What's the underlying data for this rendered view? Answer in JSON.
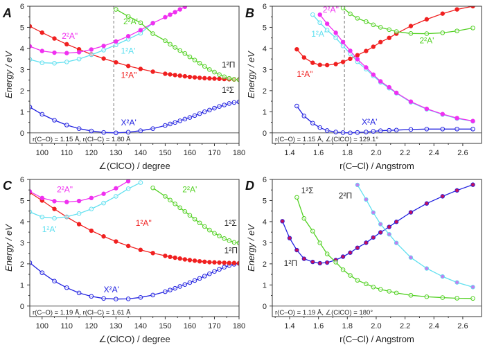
{
  "chart_data": [
    {
      "type": "line",
      "panel": "A",
      "xlabel": "∠(ClCO) / degree",
      "ylabel": "Energy / eV",
      "xlim": [
        95,
        180
      ],
      "ylim": [
        -0.5,
        6
      ],
      "xticks": [
        100,
        110,
        120,
        130,
        140,
        150,
        160,
        170,
        180
      ],
      "yticks": [
        0,
        1,
        2,
        3,
        4,
        5,
        6
      ],
      "note": "r(C–O) = 1.15 Å, r(Cl–C) = 1.80 Å",
      "dashed_x": 129.1,
      "extra_labels": [
        {
          "text": "1²Π",
          "color": "#222222"
        },
        {
          "text": "1²Σ",
          "color": "#222222"
        }
      ],
      "series": [
        {
          "name": "X²A'",
          "color": "#2020e0",
          "filled": false,
          "x": [
            95,
            100,
            105,
            110,
            115,
            120,
            125,
            130,
            135,
            140,
            145,
            150,
            152,
            154,
            156,
            158,
            160,
            162,
            164,
            166,
            168,
            170,
            172,
            174,
            176,
            178,
            180
          ],
          "y": [
            1.22,
            0.88,
            0.6,
            0.37,
            0.2,
            0.09,
            0.02,
            0,
            0.03,
            0.1,
            0.2,
            0.35,
            0.42,
            0.49,
            0.57,
            0.65,
            0.73,
            0.82,
            0.91,
            1.0,
            1.08,
            1.17,
            1.25,
            1.32,
            1.39,
            1.44,
            1.47
          ]
        },
        {
          "name": "1²A\"",
          "color": "#f02020",
          "filled": true,
          "x": [
            95,
            100,
            105,
            110,
            115,
            120,
            125,
            130,
            135,
            140,
            145,
            150,
            152,
            154,
            156,
            158,
            160,
            162,
            164,
            166,
            168,
            170,
            172,
            174,
            176,
            178,
            180
          ],
          "y": [
            5.05,
            4.75,
            4.47,
            4.2,
            3.96,
            3.72,
            3.52,
            3.34,
            3.17,
            3.03,
            2.9,
            2.8,
            2.77,
            2.74,
            2.71,
            2.68,
            2.65,
            2.63,
            2.61,
            2.59,
            2.58,
            2.57,
            2.56,
            2.55,
            2.54,
            2.53,
            2.53
          ]
        },
        {
          "name": "1²A'",
          "color": "#60e0f0",
          "filled": false,
          "x": [
            95,
            100,
            105,
            110,
            115,
            120,
            125,
            130,
            135,
            140,
            145
          ],
          "y": [
            3.48,
            3.32,
            3.3,
            3.36,
            3.5,
            3.7,
            3.92,
            4.17,
            4.44,
            4.72,
            5.2
          ]
        },
        {
          "name": "2²A\"",
          "color": "#f030f0",
          "filled": true,
          "x": [
            95,
            100,
            105,
            110,
            115,
            120,
            125,
            130,
            135,
            140,
            145,
            150,
            152,
            154,
            156,
            158
          ],
          "y": [
            4.1,
            3.88,
            3.8,
            3.78,
            3.82,
            3.95,
            4.12,
            4.33,
            4.58,
            4.87,
            5.2,
            5.48,
            5.6,
            5.72,
            5.85,
            5.97
          ]
        },
        {
          "name": "2²A'",
          "color": "#50d020",
          "filled": false,
          "x": [
            130,
            135,
            140,
            145,
            150,
            152,
            154,
            156,
            158,
            160,
            162,
            164,
            166,
            168,
            170,
            172,
            174,
            176,
            178,
            180
          ],
          "y": [
            5.85,
            5.52,
            5.22,
            4.7,
            4.37,
            4.2,
            4.05,
            3.9,
            3.76,
            3.6,
            3.45,
            3.3,
            3.15,
            3.0,
            2.88,
            2.76,
            2.66,
            2.58,
            2.54,
            2.52
          ]
        }
      ]
    },
    {
      "type": "line",
      "panel": "B",
      "xlabel": "r(C–Cl) / Angstrom",
      "ylabel": "Energy / eV",
      "xlim": [
        1.28,
        2.73
      ],
      "ylim": [
        -0.5,
        6
      ],
      "xticks": [
        1.4,
        1.6,
        1.8,
        2.0,
        2.2,
        2.4,
        2.6
      ],
      "yticks": [
        0,
        1,
        2,
        3,
        4,
        5,
        6
      ],
      "note": "r(C–O) = 1.15 Å, ∠(ClCO) = 129.1°",
      "dashed_x": 1.78,
      "extra_labels": [],
      "series": [
        {
          "name": "X²A'",
          "color": "#2020e0",
          "filled": false,
          "x": [
            1.45,
            1.5,
            1.56,
            1.61,
            1.66,
            1.72,
            1.77,
            1.82,
            1.87,
            1.93,
            1.98,
            2.03,
            2.09,
            2.14,
            2.24,
            2.35,
            2.46,
            2.56,
            2.67
          ],
          "y": [
            1.27,
            0.8,
            0.46,
            0.25,
            0.11,
            0.04,
            0.01,
            0,
            0.02,
            0.04,
            0.07,
            0.1,
            0.12,
            0.13,
            0.16,
            0.18,
            0.18,
            0.18,
            0.18
          ]
        },
        {
          "name": "1²A\"",
          "color": "#f02020",
          "filled": true,
          "x": [
            1.45,
            1.5,
            1.56,
            1.61,
            1.66,
            1.72,
            1.77,
            1.82,
            1.87,
            1.93,
            1.98,
            2.03,
            2.09,
            2.14,
            2.24,
            2.35,
            2.46,
            2.56,
            2.67
          ],
          "y": [
            3.96,
            3.57,
            3.32,
            3.22,
            3.21,
            3.26,
            3.36,
            3.51,
            3.68,
            3.88,
            4.08,
            4.3,
            4.5,
            4.7,
            5.06,
            5.38,
            5.65,
            5.85,
            6.0
          ]
        },
        {
          "name": "1²A'",
          "color": "#60e0f0",
          "filled": false,
          "x": [
            1.56,
            1.61,
            1.66,
            1.72,
            1.77,
            1.82,
            1.87,
            1.93,
            1.98,
            2.03,
            2.09,
            2.14,
            2.24,
            2.35,
            2.46,
            2.56,
            2.67
          ],
          "y": [
            5.6,
            5.22,
            4.87,
            4.5,
            4.12,
            3.75,
            3.37,
            3.02,
            2.7,
            2.4,
            2.12,
            1.88,
            1.45,
            1.12,
            0.87,
            0.68,
            0.55
          ]
        },
        {
          "name": "2²A\"",
          "color": "#f030f0",
          "filled": true,
          "x": [
            1.61,
            1.66,
            1.72,
            1.77,
            1.82,
            1.87,
            1.93,
            1.98,
            2.03,
            2.09,
            2.14,
            2.24,
            2.35,
            2.46,
            2.56,
            2.67
          ],
          "y": [
            5.6,
            5.17,
            4.74,
            4.3,
            3.89,
            3.49,
            3.1,
            2.76,
            2.44,
            2.16,
            1.9,
            1.48,
            1.14,
            0.89,
            0.7,
            0.56
          ]
        },
        {
          "name": "2²A'",
          "color": "#50d020",
          "filled": false,
          "x": [
            1.77,
            1.82,
            1.87,
            1.93,
            1.98,
            2.03,
            2.09,
            2.14,
            2.24,
            2.35,
            2.46,
            2.56,
            2.67
          ],
          "y": [
            5.92,
            5.64,
            5.43,
            5.27,
            5.12,
            5.0,
            4.89,
            4.8,
            4.71,
            4.7,
            4.74,
            4.83,
            4.97
          ]
        }
      ]
    },
    {
      "type": "line",
      "panel": "C",
      "xlabel": "∠(ClCO) / degree",
      "ylabel": "Energy / eV",
      "xlim": [
        95,
        180
      ],
      "ylim": [
        -0.5,
        6
      ],
      "xticks": [
        100,
        110,
        120,
        130,
        140,
        150,
        160,
        170,
        180
      ],
      "yticks": [
        0,
        1,
        2,
        3,
        4,
        5,
        6
      ],
      "note": "r(C–O) = 1.19 Å, r(Cl–C) = 1.61 Å",
      "extra_labels": [
        {
          "text": "1²Σ",
          "color": "#222222"
        },
        {
          "text": "1²Π",
          "color": "#222222"
        }
      ],
      "series": [
        {
          "name": "X²A'",
          "color": "#2020e0",
          "filled": false,
          "x": [
            95,
            100,
            105,
            110,
            115,
            120,
            125,
            130,
            135,
            140,
            145,
            150,
            152,
            154,
            156,
            158,
            160,
            162,
            164,
            166,
            168,
            170,
            172,
            174,
            176,
            178,
            180
          ],
          "y": [
            2.05,
            1.58,
            1.18,
            0.87,
            0.62,
            0.46,
            0.36,
            0.33,
            0.34,
            0.41,
            0.52,
            0.68,
            0.76,
            0.84,
            0.93,
            1.02,
            1.11,
            1.21,
            1.31,
            1.42,
            1.53,
            1.64,
            1.74,
            1.84,
            1.92,
            1.98,
            2.02
          ]
        },
        {
          "name": "1²A\"",
          "color": "#f02020",
          "filled": true,
          "x": [
            95,
            100,
            105,
            110,
            115,
            120,
            125,
            130,
            135,
            140,
            145,
            150,
            152,
            154,
            156,
            158,
            160,
            162,
            164,
            166,
            168,
            170,
            172,
            174,
            176,
            178,
            180
          ],
          "y": [
            5.38,
            5.0,
            4.6,
            4.22,
            3.88,
            3.57,
            3.3,
            3.06,
            2.85,
            2.66,
            2.51,
            2.38,
            2.33,
            2.29,
            2.25,
            2.21,
            2.18,
            2.15,
            2.12,
            2.1,
            2.08,
            2.07,
            2.06,
            2.05,
            2.04,
            2.04,
            2.03
          ]
        },
        {
          "name": "1²A'",
          "color": "#60e0f0",
          "filled": false,
          "x": [
            95,
            100,
            105,
            110,
            115,
            120,
            125,
            130,
            135,
            140
          ],
          "y": [
            4.46,
            4.22,
            4.16,
            4.23,
            4.38,
            4.6,
            4.88,
            5.2,
            5.56,
            5.85
          ]
        },
        {
          "name": "2²A\"",
          "color": "#f030f0",
          "filled": true,
          "x": [
            95,
            100,
            105,
            110,
            115,
            120,
            125,
            130,
            135
          ],
          "y": [
            5.43,
            5.12,
            4.97,
            4.93,
            4.98,
            5.12,
            5.32,
            5.58,
            5.92
          ]
        },
        {
          "name": "2²A'",
          "color": "#50d020",
          "filled": false,
          "x": [
            145,
            150,
            152,
            154,
            156,
            158,
            160,
            162,
            164,
            166,
            168,
            170,
            172,
            174,
            176,
            178,
            180
          ],
          "y": [
            5.6,
            5.2,
            5.02,
            4.84,
            4.66,
            4.48,
            4.3,
            4.12,
            3.94,
            3.77,
            3.6,
            3.45,
            3.32,
            3.2,
            3.1,
            3.02,
            2.99
          ]
        }
      ]
    },
    {
      "type": "line",
      "panel": "D",
      "xlabel": "r(C–Cl) / Angstrom",
      "ylabel": "Energy / eV",
      "xlim": [
        1.28,
        2.73
      ],
      "ylim": [
        -0.5,
        6
      ],
      "xticks": [
        1.4,
        1.6,
        1.8,
        2.0,
        2.2,
        2.4,
        2.6
      ],
      "yticks": [
        0,
        1,
        2,
        3,
        4,
        5,
        6
      ],
      "note": "r(C–O) = 1.19 Å, ∠(ClCO) = 180°",
      "extra_labels": [],
      "series": [
        {
          "name": "1²Π",
          "color": "#2020e0",
          "filled": true,
          "label_color": "#222222",
          "x": [
            1.35,
            1.4,
            1.45,
            1.5,
            1.56,
            1.61,
            1.66,
            1.72,
            1.77,
            1.82,
            1.87,
            1.93,
            1.98,
            2.03,
            2.09,
            2.14,
            2.24,
            2.35,
            2.46,
            2.56,
            2.67
          ],
          "y": [
            4.02,
            3.22,
            2.65,
            2.24,
            2.09,
            2.03,
            2.06,
            2.18,
            2.34,
            2.53,
            2.76,
            3.0,
            3.25,
            3.49,
            3.75,
            3.99,
            4.44,
            4.86,
            5.2,
            5.48,
            5.75
          ]
        },
        {
          "name": "1²Σ",
          "color": "#50d020",
          "filled": false,
          "label_color": "#222222",
          "x": [
            1.45,
            1.5,
            1.56,
            1.61,
            1.66,
            1.72,
            1.77,
            1.82,
            1.87,
            1.93,
            1.98,
            2.03,
            2.09,
            2.14,
            2.24,
            2.35,
            2.46,
            2.56,
            2.67
          ],
          "y": [
            5.15,
            4.15,
            3.55,
            2.99,
            2.47,
            2.08,
            1.72,
            1.45,
            1.22,
            1.05,
            0.9,
            0.79,
            0.7,
            0.62,
            0.51,
            0.44,
            0.4,
            0.37,
            0.36
          ]
        },
        {
          "name": "2²Π",
          "color": "#60e0f0",
          "filled": true,
          "label_color": "#222222",
          "x": [
            1.87,
            1.93,
            1.98,
            2.03,
            2.09,
            2.14,
            2.24,
            2.35,
            2.46,
            2.56,
            2.67
          ],
          "y": [
            5.74,
            5.05,
            4.43,
            3.88,
            3.4,
            2.99,
            2.3,
            1.78,
            1.4,
            1.12,
            0.9
          ]
        }
      ]
    }
  ]
}
